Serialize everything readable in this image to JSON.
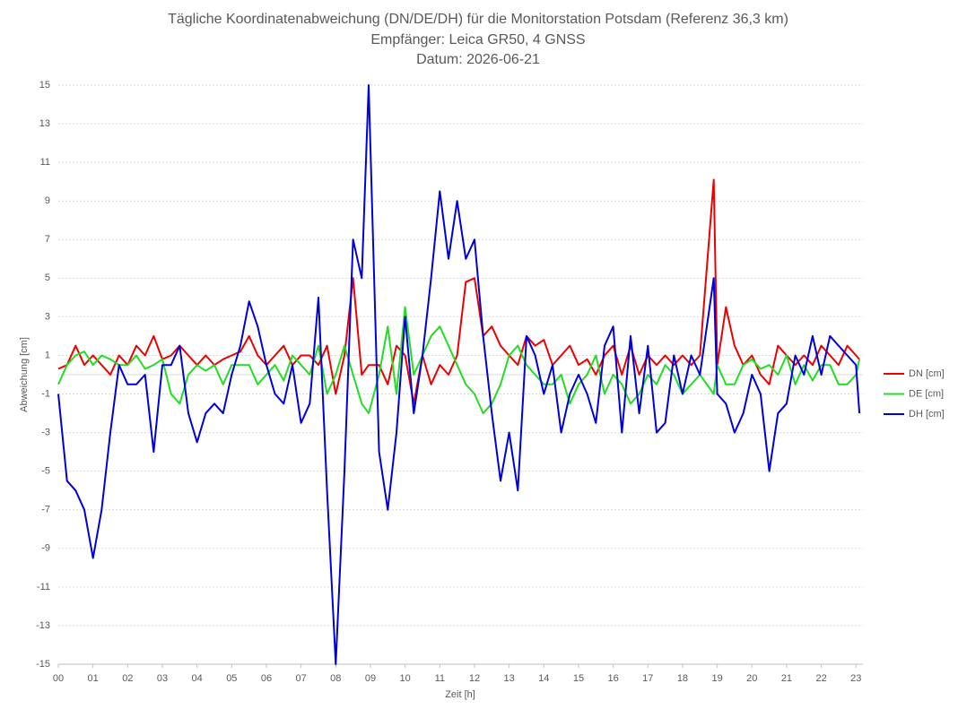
{
  "chart_data": {
    "type": "line",
    "title": "Tägliche Koordinatenabweichung (DN/DE/DH) für die Monitorstation Potsdam (Referenz 36,3 km)",
    "subtitle": [
      "Empfänger: Leica GR50, 4 GNSS",
      "Datum: 2026-06-21"
    ],
    "xlabel": "Zeit [h]",
    "ylabel": "Abweichung [cm]",
    "x": [
      0,
      0.25,
      0.5,
      0.75,
      1,
      1.25,
      1.5,
      1.75,
      2,
      2.25,
      2.5,
      2.75,
      3,
      3.25,
      3.5,
      3.75,
      4,
      4.25,
      4.5,
      4.75,
      5,
      5.25,
      5.5,
      5.75,
      6,
      6.25,
      6.5,
      6.75,
      7,
      7.25,
      7.5,
      7.75,
      8,
      8.25,
      8.5,
      8.75,
      8.95,
      9.25,
      9.5,
      9.75,
      10,
      10.25,
      10.5,
      10.75,
      11,
      11.25,
      11.5,
      11.75,
      12,
      12.25,
      12.5,
      12.75,
      13,
      13.25,
      13.5,
      13.75,
      14,
      14.25,
      14.5,
      14.75,
      15,
      15.25,
      15.5,
      15.75,
      16,
      16.25,
      16.5,
      16.75,
      17,
      17.25,
      17.5,
      17.75,
      18,
      18.25,
      18.5,
      18.9,
      19,
      19.25,
      19.5,
      19.75,
      20,
      20.25,
      20.5,
      20.75,
      21,
      21.25,
      21.5,
      21.75,
      22,
      22.25,
      22.5,
      22.75,
      23,
      23.1
    ],
    "series": [
      {
        "name": "DN [cm]",
        "color": "#ee0000",
        "values": [
          0.3,
          0.5,
          1.5,
          0.5,
          1,
          0.5,
          0,
          1,
          0.5,
          1.5,
          1,
          2,
          0.8,
          1,
          1.5,
          1,
          0.5,
          1,
          0.5,
          0.8,
          1,
          1.2,
          2,
          1,
          0.5,
          1,
          1.5,
          0.5,
          1,
          1,
          0.5,
          1.5,
          -1,
          1,
          5,
          0,
          0.5,
          0.5,
          -0.5,
          1.5,
          1,
          -1.5,
          1,
          -0.5,
          0.5,
          0,
          1,
          4.8,
          5,
          2,
          2.5,
          1.5,
          1,
          0.5,
          2,
          1.5,
          1.8,
          0.5,
          1,
          1.5,
          0.5,
          0.8,
          0,
          1,
          1.5,
          0,
          1.5,
          0,
          1,
          0.5,
          1,
          0.5,
          1,
          0.5,
          1,
          10.1,
          0.5,
          3.5,
          1.5,
          0.5,
          1,
          0,
          -0.5,
          1.5,
          1,
          0.5,
          1,
          0.5,
          1.5,
          1,
          0.5,
          1.5,
          1,
          0.8
        ]
      },
      {
        "name": "DE [cm]",
        "color": "#22dd22",
        "values": [
          -0.5,
          0.5,
          1,
          1.2,
          0.5,
          1,
          0.8,
          0.5,
          0.5,
          1,
          0.3,
          0.5,
          0.8,
          -1,
          -1.5,
          0,
          0.5,
          0.2,
          0.5,
          -0.5,
          0.5,
          0.5,
          0.5,
          -0.5,
          0,
          0.5,
          -0.3,
          1,
          0.5,
          0,
          1.5,
          -1,
          0,
          1.5,
          0,
          -1.5,
          -2,
          0,
          2.5,
          -1,
          3.5,
          0,
          1,
          2,
          2.5,
          1.5,
          0.5,
          -0.5,
          -1,
          -2,
          -1.5,
          -0.5,
          1,
          1.5,
          0.5,
          0,
          -0.5,
          -0.5,
          0,
          -1.5,
          -0.5,
          0,
          1,
          -1,
          0,
          -0.5,
          -1.5,
          -1,
          0,
          -0.5,
          0.5,
          0,
          -1,
          -0.5,
          0,
          -1,
          0.5,
          -0.5,
          -0.5,
          0.5,
          0.8,
          0.3,
          0.5,
          0,
          1,
          -0.5,
          0.5,
          -0.3,
          0.5,
          0.5,
          -0.5,
          -0.5,
          0,
          0.8
        ]
      },
      {
        "name": "DH [cm]",
        "color": "#0000dd",
        "values": [
          -1,
          -5.5,
          -6,
          -7,
          -9.5,
          -7,
          -3,
          0.5,
          -0.5,
          -0.5,
          0,
          -4,
          0.5,
          0.5,
          1.5,
          -2,
          -3.5,
          -2,
          -1.5,
          -2,
          0,
          1.5,
          3.8,
          2.5,
          0.5,
          -1,
          -1.5,
          0.5,
          -2.5,
          -1.5,
          4,
          -6,
          -15,
          -5,
          7,
          5,
          15,
          -4,
          -7,
          -3,
          3,
          -2,
          1,
          5,
          9.5,
          6,
          9,
          6,
          7,
          2,
          -2,
          -5.5,
          -3,
          -6,
          2,
          1,
          -1,
          0.5,
          -3,
          -1,
          0,
          -1,
          -2.5,
          1.5,
          2.5,
          -3,
          2,
          -2,
          1.5,
          -3,
          -2.5,
          1,
          -1,
          1,
          0,
          5,
          -1,
          -1.5,
          -3,
          -2,
          0,
          -1,
          -5,
          -2,
          -1.5,
          1,
          0,
          2,
          0,
          2,
          1.5,
          1,
          0.5,
          -2
        ]
      }
    ],
    "xlim": [
      0,
      23.2
    ],
    "xticks": [
      {
        "value": 0,
        "label": "00"
      },
      {
        "value": 1,
        "label": "01"
      },
      {
        "value": 2,
        "label": "02"
      },
      {
        "value": 3,
        "label": "03"
      },
      {
        "value": 4,
        "label": "04"
      },
      {
        "value": 5,
        "label": "05"
      },
      {
        "value": 6,
        "label": "06"
      },
      {
        "value": 7,
        "label": "07"
      },
      {
        "value": 8,
        "label": "08"
      },
      {
        "value": 9,
        "label": "09"
      },
      10,
      11,
      12,
      13,
      14,
      15,
      16,
      17,
      18,
      19,
      20,
      21,
      22,
      23
    ],
    "ylim": [
      -15,
      15
    ],
    "yticks": [
      -15,
      -13,
      -11,
      -9,
      -7,
      -5,
      -3,
      -1,
      1,
      3,
      5,
      7,
      9,
      11,
      13,
      15
    ],
    "grid": true,
    "legend": "right"
  }
}
